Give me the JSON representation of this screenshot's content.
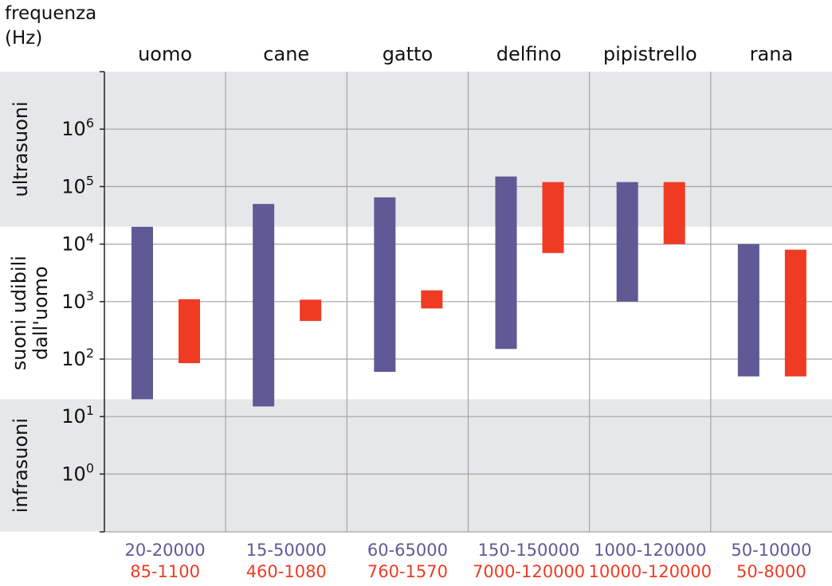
{
  "chart_data": {
    "type": "bar",
    "ylabel_line1": "frequenza",
    "ylabel_line2": "(Hz)",
    "y_scale": "log",
    "ylim": [
      0.1,
      10000000
    ],
    "y_ticks": [
      {
        "value": 1,
        "base": "10",
        "exp": "0"
      },
      {
        "value": 10,
        "base": "10",
        "exp": "1"
      },
      {
        "value": 100,
        "base": "10",
        "exp": "2"
      },
      {
        "value": 1000,
        "base": "10",
        "exp": "3"
      },
      {
        "value": 10000,
        "base": "10",
        "exp": "4"
      },
      {
        "value": 100000,
        "base": "10",
        "exp": "5"
      },
      {
        "value": 1000000,
        "base": "10",
        "exp": "6"
      }
    ],
    "zones": [
      {
        "label": "ultrasuoni",
        "from": 20000,
        "to": 10000000,
        "color": "#e6e7e9"
      },
      {
        "label_line1": "suoni udibili",
        "label_line2": "dall'uomo",
        "from": 20,
        "to": 20000,
        "color": "#ffffff"
      },
      {
        "label": "infrasuoni",
        "from": 0.1,
        "to": 20,
        "color": "#e6e7e9"
      }
    ],
    "categories": [
      "uomo",
      "cane",
      "gatto",
      "delfino",
      "pipistrello",
      "rana"
    ],
    "series": [
      {
        "color": "#5f5a96",
        "ranges": [
          [
            20,
            20000
          ],
          [
            15,
            50000
          ],
          [
            60,
            65000
          ],
          [
            150,
            150000
          ],
          [
            1000,
            120000
          ],
          [
            50,
            10000
          ]
        ],
        "labels": [
          "20-20000",
          "15-50000",
          "60-65000",
          "150-150000",
          "1000-120000",
          "50-10000"
        ]
      },
      {
        "color": "#ef3b24",
        "ranges": [
          [
            85,
            1100
          ],
          [
            460,
            1080
          ],
          [
            760,
            1570
          ],
          [
            7000,
            120000
          ],
          [
            10000,
            120000
          ],
          [
            50,
            8000
          ]
        ],
        "labels": [
          "85-1100",
          "460-1080",
          "760-1570",
          "7000-120000",
          "10000-120000",
          "50-8000"
        ]
      }
    ],
    "grid": true
  }
}
